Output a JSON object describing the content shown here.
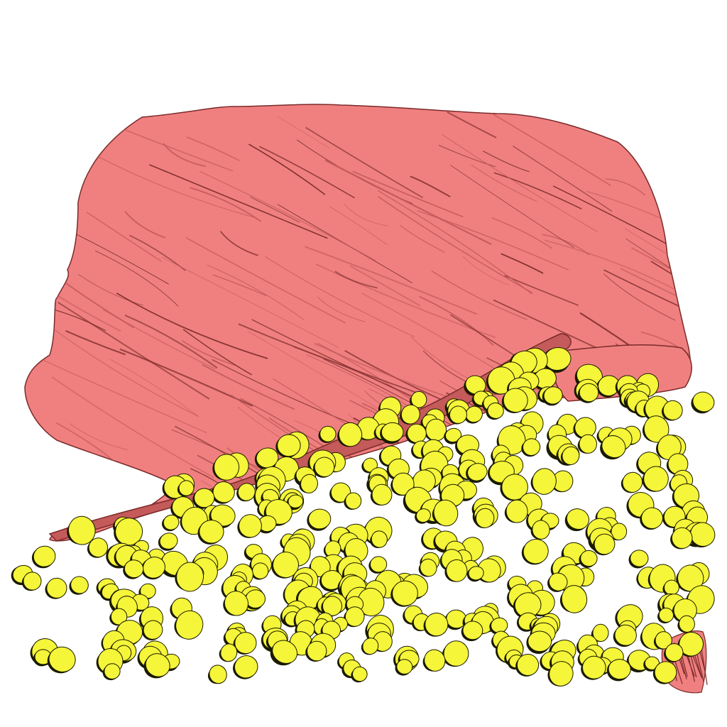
{
  "scene": {
    "background_color": "#ffffff",
    "structures": [
      {
        "kind": "membrane-stack",
        "fill_color": "#f08080",
        "edge_color": "#7a2a2a",
        "shadow_color": "#c45a5a"
      },
      {
        "kind": "vesicles",
        "fill_color": "#f5f53a",
        "edge_color": "#1a1a00",
        "count": 400
      }
    ]
  }
}
